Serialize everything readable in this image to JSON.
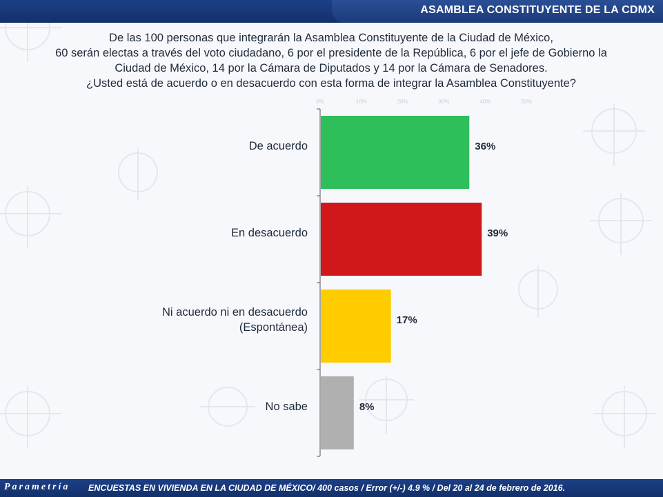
{
  "header": {
    "title": "ASAMBLEA CONSTITUYENTE DE LA CDMX"
  },
  "question": {
    "lines": [
      "De las 100 personas que integrarán la Asamblea Constituyente de la Ciudad de México,",
      "60 serán electas a través del voto ciudadano, 6 por el presidente de la República, 6 por el jefe de Gobierno la",
      "Ciudad de México, 14 por la Cámara de Diputados y 14 por la Cámara de Senadores.",
      "¿Usted está de acuerdo o en desacuerdo con esta forma de integrar la Asamblea Constituyente?"
    ]
  },
  "chart_data": {
    "type": "bar",
    "orientation": "horizontal",
    "categories": [
      [
        "De acuerdo"
      ],
      [
        "En desacuerdo"
      ],
      [
        "Ni acuerdo ni en desacuerdo",
        "(Espontánea)"
      ],
      [
        "No sabe"
      ]
    ],
    "values": [
      36,
      39,
      17,
      8
    ],
    "value_labels": [
      "36%",
      "39%",
      "17%",
      "8%"
    ],
    "colors": [
      "#2ebf5a",
      "#d01719",
      "#ffcc00",
      "#b0b0b0"
    ],
    "xlim": [
      0,
      60
    ],
    "ticks": [
      "0%",
      "10%",
      "20%",
      "30%",
      "40%",
      "50%"
    ],
    "grid": false
  },
  "footer": {
    "logo": "Parametría",
    "note": "ENCUESTAS EN VIVIENDA EN LA CIUDAD DE MÉXICO/ 400 casos / Error (+/-) 4.9 % / Del 20 al 24 de febrero de 2016."
  },
  "watermark": {
    "text": "Parametría"
  }
}
